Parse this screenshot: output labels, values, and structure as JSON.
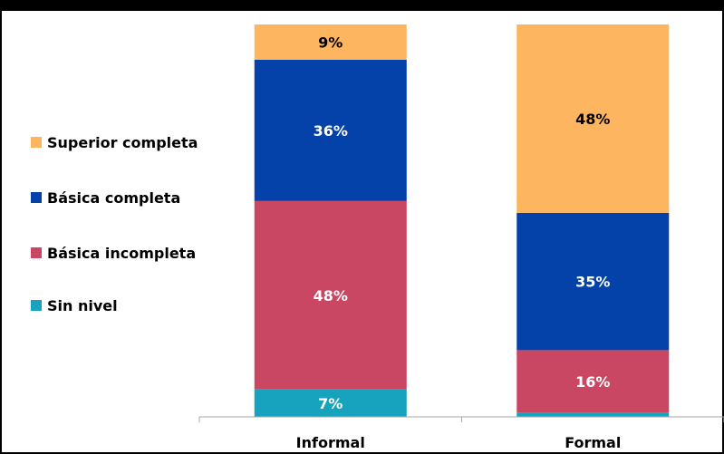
{
  "chart_data": {
    "type": "bar",
    "stacked": true,
    "title": "",
    "categories": [
      "Informal",
      "Formal"
    ],
    "series": [
      {
        "name": "Sin nivel",
        "color": "#17a2bd",
        "label_color": "#ffffff",
        "values": [
          7,
          1
        ],
        "labels": [
          "7%",
          ""
        ]
      },
      {
        "name": "Básica incompleta",
        "color": "#c94763",
        "label_color": "#ffffff",
        "values": [
          48,
          16
        ],
        "labels": [
          "48%",
          "16%"
        ]
      },
      {
        "name": "Básica completa",
        "color": "#0441a8",
        "label_color": "#ffffff",
        "values": [
          36,
          35
        ],
        "labels": [
          "36%",
          "35%"
        ]
      },
      {
        "name": "Superior completa",
        "color": "#fdb55f",
        "label_color": "#000000",
        "values": [
          9,
          48
        ],
        "labels": [
          "9%",
          "48%"
        ]
      }
    ],
    "ylim": [
      0,
      100
    ],
    "grid": false,
    "legend_position": "left"
  },
  "legend": {
    "items": [
      {
        "label": "Superior completa",
        "color": "#fdb55f"
      },
      {
        "label": "Básica completa",
        "color": "#0441a8"
      },
      {
        "label": "Básica incompleta",
        "color": "#c94763"
      },
      {
        "label": "Sin nivel",
        "color": "#17a2bd"
      }
    ]
  }
}
